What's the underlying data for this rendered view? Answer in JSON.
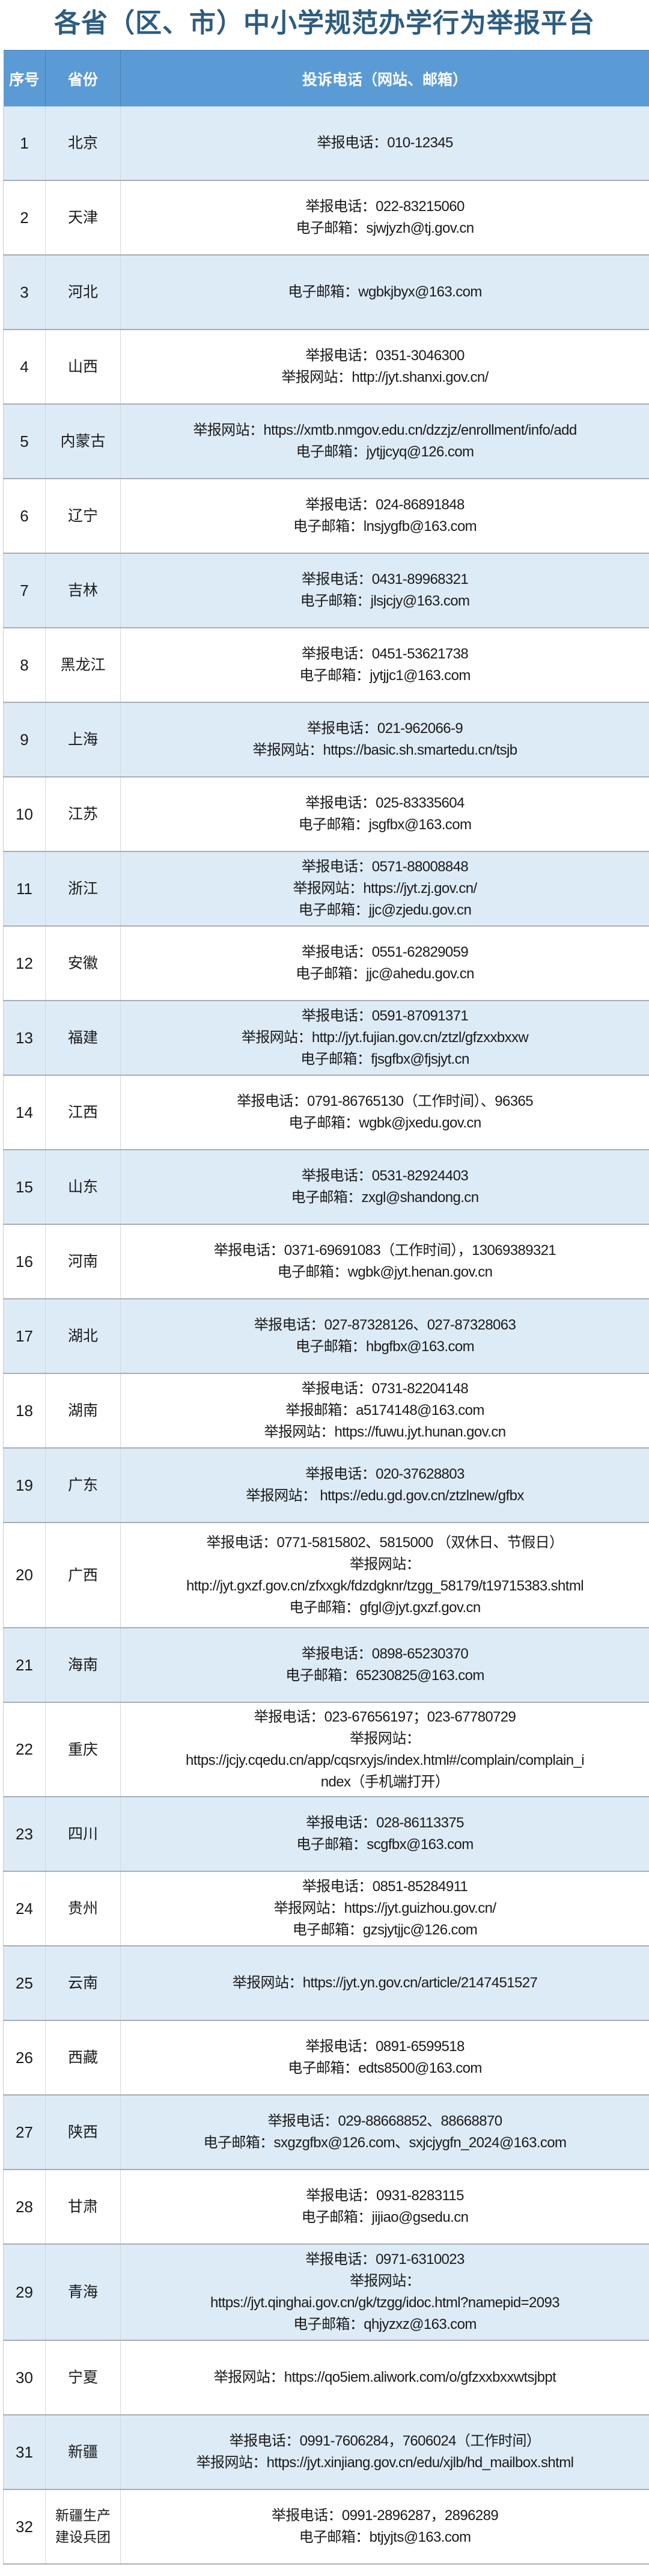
{
  "title": "各省（区、市）中小学规范办学行为举报平台",
  "colors": {
    "header_bg": "#5b9bd5",
    "alt_row_bg": "#ddebf7",
    "title": "#2e5c80"
  },
  "table": {
    "headers": [
      "序号",
      "省份",
      "投诉电话（网站、邮箱）"
    ],
    "rows": [
      {
        "no": "1",
        "province": "北京",
        "lines": [
          "举报电话：010-12345"
        ]
      },
      {
        "no": "2",
        "province": "天津",
        "lines": [
          "举报电话：022-83215060",
          "电子邮箱：sjwjyzh@tj.gov.cn"
        ]
      },
      {
        "no": "3",
        "province": "河北",
        "lines": [
          "电子邮箱：wgbkjbyx@163.com"
        ]
      },
      {
        "no": "4",
        "province": "山西",
        "lines": [
          "举报电话：0351-3046300",
          "举报网站：http://jyt.shanxi.gov.cn/"
        ]
      },
      {
        "no": "5",
        "province": "内蒙古",
        "lines": [
          "举报网站：https://xmtb.nmgov.edu.cn/dzzjz/enrollment/info/add",
          "电子邮箱：jytjjcyq@126.com"
        ]
      },
      {
        "no": "6",
        "province": "辽宁",
        "lines": [
          "举报电话：024-86891848",
          "电子邮箱：lnsjygfb@163.com"
        ]
      },
      {
        "no": "7",
        "province": "吉林",
        "lines": [
          "举报电话：0431-89968321",
          "电子邮箱：jlsjcjy@163.com"
        ]
      },
      {
        "no": "8",
        "province": "黑龙江",
        "lines": [
          "举报电话：0451-53621738",
          "电子邮箱：jytjjc1@163.com"
        ]
      },
      {
        "no": "9",
        "province": "上海",
        "lines": [
          "举报电话：021-962066-9",
          "举报网站：https://basic.sh.smartedu.cn/tsjb"
        ]
      },
      {
        "no": "10",
        "province": "江苏",
        "lines": [
          "举报电话：025-83335604",
          "电子邮箱：jsgfbx@163.com"
        ]
      },
      {
        "no": "11",
        "province": "浙江",
        "lines": [
          "举报电话：0571-88008848",
          "举报网站：https://jyt.zj.gov.cn/",
          "电子邮箱：jjc@zjedu.gov.cn"
        ]
      },
      {
        "no": "12",
        "province": "安徽",
        "lines": [
          "举报电话：0551-62829059",
          "电子邮箱：jjc@ahedu.gov.cn"
        ]
      },
      {
        "no": "13",
        "province": "福建",
        "lines": [
          "举报电话：0591-87091371",
          "举报网站：http://jyt.fujian.gov.cn/ztzl/gfzxxbxxw",
          "电子邮箱：fjsgfbx@fjsjyt.cn"
        ]
      },
      {
        "no": "14",
        "province": "江西",
        "lines": [
          "举报电话：0791-86765130（工作时间）、96365",
          "电子邮箱：wgbk@jxedu.gov.cn"
        ]
      },
      {
        "no": "15",
        "province": "山东",
        "lines": [
          "举报电话：0531-82924403",
          "电子邮箱：zxgl@shandong.cn"
        ]
      },
      {
        "no": "16",
        "province": "河南",
        "lines": [
          "举报电话：0371-69691083（工作时间），13069389321",
          "电子邮箱：wgbk@jyt.henan.gov.cn"
        ]
      },
      {
        "no": "17",
        "province": "湖北",
        "lines": [
          "举报电话：027-87328126、027-87328063",
          "电子邮箱：hbgfbx@163.com"
        ]
      },
      {
        "no": "18",
        "province": "湖南",
        "lines": [
          "举报电话：0731-82204148",
          "举报邮箱：a5174148@163.com",
          "举报网站：https://fuwu.jyt.hunan.gov.cn"
        ]
      },
      {
        "no": "19",
        "province": "广东",
        "lines": [
          "举报电话：020-37628803",
          "举报网站： https://edu.gd.gov.cn/ztzlnew/gfbx"
        ]
      },
      {
        "no": "20",
        "province": "广西",
        "lines": [
          "举报电话：0771-5815802、5815000 （双休日、节假日）",
          "举报网站：",
          "http://jyt.gxzf.gov.cn/zfxxgk/fdzdgknr/tzgg_58179/t19715383.shtml",
          "电子邮箱：gfgl@jyt.gxzf.gov.cn"
        ]
      },
      {
        "no": "21",
        "province": "海南",
        "lines": [
          "举报电话：0898-65230370",
          "电子邮箱：65230825@163.com"
        ]
      },
      {
        "no": "22",
        "province": "重庆",
        "lines": [
          "举报电话：023-67656197；023-67780729",
          "举报网站：",
          "https://jcjy.cqedu.cn/app/cqsrxyjs/index.html#/complain/complain_i",
          "ndex（手机端打开）"
        ]
      },
      {
        "no": "23",
        "province": "四川",
        "lines": [
          "举报电话：028-86113375",
          "电子邮箱：scgfbx@163.com"
        ]
      },
      {
        "no": "24",
        "province": "贵州",
        "lines": [
          "举报电话：0851-85284911",
          "举报网站：https://jyt.guizhou.gov.cn/",
          "电子邮箱：gzsjytjjc@126.com"
        ]
      },
      {
        "no": "25",
        "province": "云南",
        "lines": [
          "举报网站：https://jyt.yn.gov.cn/article/2147451527"
        ]
      },
      {
        "no": "26",
        "province": "西藏",
        "lines": [
          "举报电话：0891-6599518",
          "电子邮箱：edts8500@163.com"
        ]
      },
      {
        "no": "27",
        "province": "陕西",
        "lines": [
          "举报电话：029-88668852、88668870",
          "电子邮箱：sxgzgfbx@126.com、sxjcjygfn_2024@163.com"
        ]
      },
      {
        "no": "28",
        "province": "甘肃",
        "lines": [
          "举报电话：0931-8283115",
          "电子邮箱：jijiao@gsedu.cn"
        ]
      },
      {
        "no": "29",
        "province": "青海",
        "lines": [
          "举报电话：0971-6310023",
          "举报网站：",
          "https://jyt.qinghai.gov.cn/gk/tzgg/idoc.html?namepid=2093",
          "电子邮箱：qhjyzxz@163.com"
        ]
      },
      {
        "no": "30",
        "province": "宁夏",
        "lines": [
          "举报网站：https://qo5iem.aliwork.com/o/gfzxxbxxwtsjbpt"
        ]
      },
      {
        "no": "31",
        "province": "新疆",
        "lines": [
          "举报电话：0991-7606284，7606024（工作时间）",
          "举报网站：https://jyt.xinjiang.gov.cn/edu/xjlb/hd_mailbox.shtml"
        ]
      },
      {
        "no": "32",
        "province": "新疆生产建设兵团",
        "lines": [
          "举报电话：0991-2896287，2896289",
          "电子邮箱：btjyjts@163.com"
        ]
      }
    ]
  }
}
